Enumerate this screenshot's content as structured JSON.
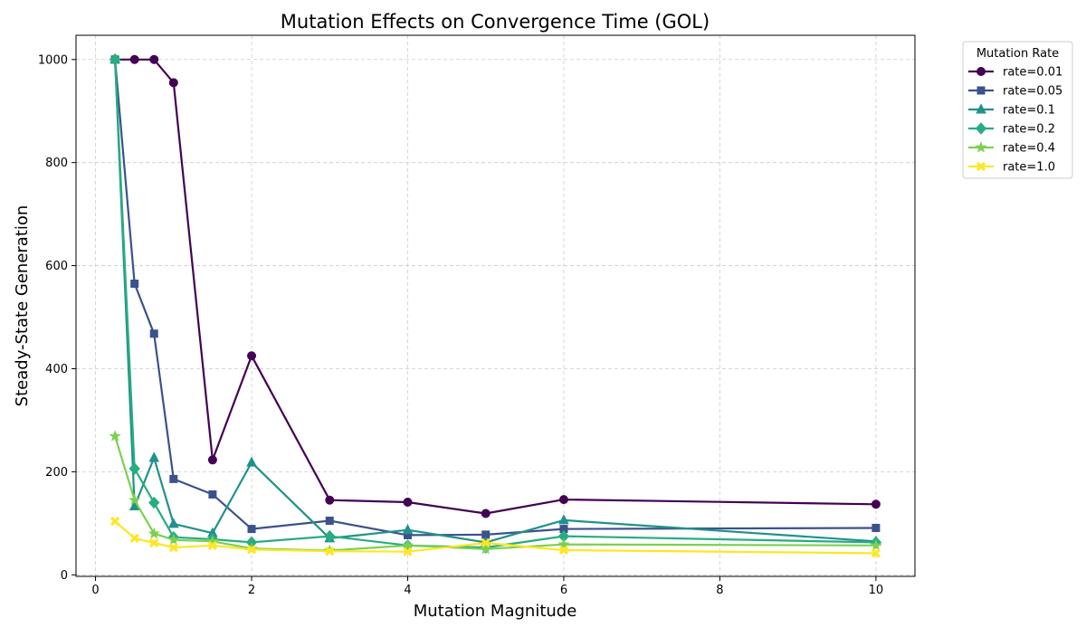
{
  "chart_data": {
    "type": "line",
    "title": "Mutation Effects on Convergence Time (GOL)",
    "xlabel": "Mutation Magnitude",
    "ylabel": "Steady-State Generation",
    "xlim": [
      -0.25,
      10.5
    ],
    "ylim": [
      -3,
      1047
    ],
    "xticks": [
      0,
      2,
      4,
      6,
      8,
      10
    ],
    "yticks": [
      0,
      200,
      400,
      600,
      800,
      1000
    ],
    "grid": true,
    "legend_title": "Mutation Rate",
    "legend_position": "outside-top-right",
    "x": [
      0.25,
      0.5,
      0.75,
      1.0,
      1.5,
      2.0,
      3.0,
      4.0,
      5.0,
      6.0,
      10.0
    ],
    "series": [
      {
        "name": "rate=0.01",
        "color": "#440154",
        "marker": "circle",
        "values": [
          1000,
          1000,
          1000,
          955,
          223,
          425,
          145,
          141,
          119,
          146,
          137
        ]
      },
      {
        "name": "rate=0.05",
        "color": "#3b528b",
        "marker": "square",
        "values": [
          1000,
          565,
          468,
          186,
          156,
          89,
          105,
          77,
          78,
          89,
          91
        ]
      },
      {
        "name": "rate=0.1",
        "color": "#21918c",
        "marker": "triangle",
        "values": [
          1000,
          133,
          227,
          99,
          81,
          218,
          71,
          87,
          63,
          106,
          65
        ]
      },
      {
        "name": "rate=0.2",
        "color": "#27ad81",
        "marker": "diamond",
        "values": [
          1000,
          206,
          140,
          73,
          69,
          63,
          75,
          57,
          53,
          75,
          63
        ]
      },
      {
        "name": "rate=0.4",
        "color": "#7ad151",
        "marker": "star",
        "values": [
          269,
          145,
          80,
          68,
          65,
          51,
          47,
          57,
          50,
          59,
          57
        ]
      },
      {
        "name": "rate=1.0",
        "color": "#fde725",
        "marker": "x",
        "values": [
          104,
          71,
          62,
          53,
          57,
          49,
          46,
          45,
          62,
          48,
          42
        ]
      }
    ]
  }
}
